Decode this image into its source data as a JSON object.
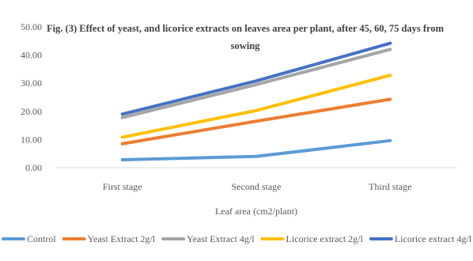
{
  "chart_data": {
    "type": "line",
    "title_lines": [
      "Fig. (3) Effect of yeast, and licorice extracts on leaves area per plant, after 45, 60, 75 days from",
      "sowing"
    ],
    "categories": [
      "First stage",
      "Second stage",
      "Third stage"
    ],
    "xlabel": "Leaf area (cm2/plant)",
    "ylabel": "",
    "ylim": [
      0,
      50
    ],
    "y_ticks": [
      "0.00",
      "10.00",
      "20.00",
      "30.00",
      "40.00",
      "50.00"
    ],
    "grid": false,
    "legend_position": "bottom",
    "series": [
      {
        "name": "Control",
        "color": "#5B9BD5",
        "values": [
          2.8,
          4.0,
          9.6
        ]
      },
      {
        "name": "Yeast Extract 2g/l",
        "color": "#ED7D31",
        "values": [
          8.5,
          16.5,
          24.3
        ]
      },
      {
        "name": "Yeast Extract 4g/l",
        "color": "#A5A5A5",
        "values": [
          17.8,
          29.5,
          42.0
        ]
      },
      {
        "name": "Licorice extract 2g/l",
        "color": "#FFC000",
        "values": [
          10.8,
          20.3,
          32.8
        ]
      },
      {
        "name": "Licorice extract 4g/l",
        "color": "#4472C4",
        "values": [
          19.0,
          30.8,
          44.2
        ]
      }
    ]
  }
}
